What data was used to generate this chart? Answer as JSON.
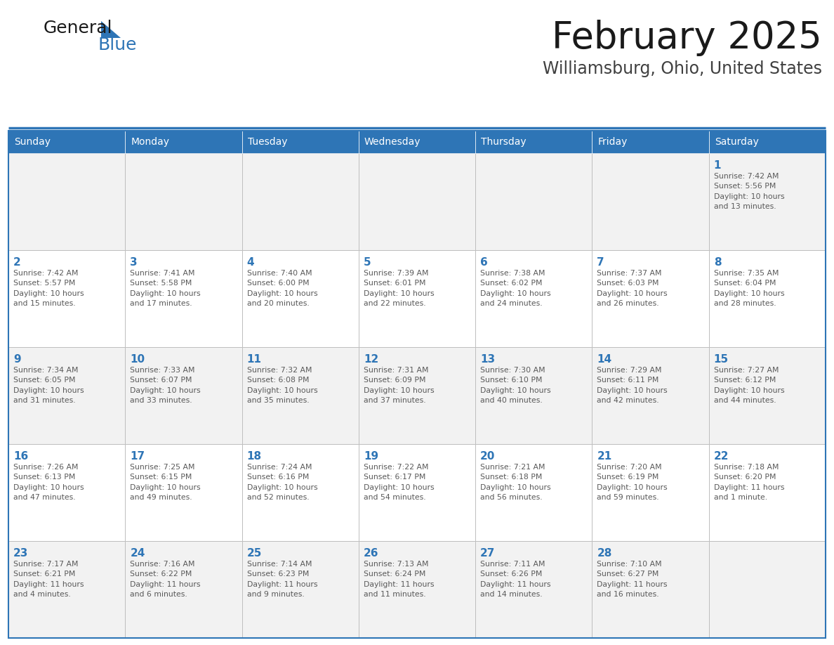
{
  "title": "February 2025",
  "subtitle": "Williamsburg, Ohio, United States",
  "header_color": "#2e75b6",
  "header_text_color": "#ffffff",
  "bg_color": "#ffffff",
  "cell_bg_odd": "#f2f2f2",
  "cell_bg_even": "#ffffff",
  "day_number_color": "#2e75b6",
  "text_color": "#595959",
  "border_color": "#2e75b6",
  "cell_border_color": "#bfbfbf",
  "logo_black": "#1a1a1a",
  "logo_blue": "#2e75b6",
  "days_of_week": [
    "Sunday",
    "Monday",
    "Tuesday",
    "Wednesday",
    "Thursday",
    "Friday",
    "Saturday"
  ],
  "weeks": [
    [
      {
        "day": "",
        "info": ""
      },
      {
        "day": "",
        "info": ""
      },
      {
        "day": "",
        "info": ""
      },
      {
        "day": "",
        "info": ""
      },
      {
        "day": "",
        "info": ""
      },
      {
        "day": "",
        "info": ""
      },
      {
        "day": "1",
        "info": "Sunrise: 7:42 AM\nSunset: 5:56 PM\nDaylight: 10 hours\nand 13 minutes."
      }
    ],
    [
      {
        "day": "2",
        "info": "Sunrise: 7:42 AM\nSunset: 5:57 PM\nDaylight: 10 hours\nand 15 minutes."
      },
      {
        "day": "3",
        "info": "Sunrise: 7:41 AM\nSunset: 5:58 PM\nDaylight: 10 hours\nand 17 minutes."
      },
      {
        "day": "4",
        "info": "Sunrise: 7:40 AM\nSunset: 6:00 PM\nDaylight: 10 hours\nand 20 minutes."
      },
      {
        "day": "5",
        "info": "Sunrise: 7:39 AM\nSunset: 6:01 PM\nDaylight: 10 hours\nand 22 minutes."
      },
      {
        "day": "6",
        "info": "Sunrise: 7:38 AM\nSunset: 6:02 PM\nDaylight: 10 hours\nand 24 minutes."
      },
      {
        "day": "7",
        "info": "Sunrise: 7:37 AM\nSunset: 6:03 PM\nDaylight: 10 hours\nand 26 minutes."
      },
      {
        "day": "8",
        "info": "Sunrise: 7:35 AM\nSunset: 6:04 PM\nDaylight: 10 hours\nand 28 minutes."
      }
    ],
    [
      {
        "day": "9",
        "info": "Sunrise: 7:34 AM\nSunset: 6:05 PM\nDaylight: 10 hours\nand 31 minutes."
      },
      {
        "day": "10",
        "info": "Sunrise: 7:33 AM\nSunset: 6:07 PM\nDaylight: 10 hours\nand 33 minutes."
      },
      {
        "day": "11",
        "info": "Sunrise: 7:32 AM\nSunset: 6:08 PM\nDaylight: 10 hours\nand 35 minutes."
      },
      {
        "day": "12",
        "info": "Sunrise: 7:31 AM\nSunset: 6:09 PM\nDaylight: 10 hours\nand 37 minutes."
      },
      {
        "day": "13",
        "info": "Sunrise: 7:30 AM\nSunset: 6:10 PM\nDaylight: 10 hours\nand 40 minutes."
      },
      {
        "day": "14",
        "info": "Sunrise: 7:29 AM\nSunset: 6:11 PM\nDaylight: 10 hours\nand 42 minutes."
      },
      {
        "day": "15",
        "info": "Sunrise: 7:27 AM\nSunset: 6:12 PM\nDaylight: 10 hours\nand 44 minutes."
      }
    ],
    [
      {
        "day": "16",
        "info": "Sunrise: 7:26 AM\nSunset: 6:13 PM\nDaylight: 10 hours\nand 47 minutes."
      },
      {
        "day": "17",
        "info": "Sunrise: 7:25 AM\nSunset: 6:15 PM\nDaylight: 10 hours\nand 49 minutes."
      },
      {
        "day": "18",
        "info": "Sunrise: 7:24 AM\nSunset: 6:16 PM\nDaylight: 10 hours\nand 52 minutes."
      },
      {
        "day": "19",
        "info": "Sunrise: 7:22 AM\nSunset: 6:17 PM\nDaylight: 10 hours\nand 54 minutes."
      },
      {
        "day": "20",
        "info": "Sunrise: 7:21 AM\nSunset: 6:18 PM\nDaylight: 10 hours\nand 56 minutes."
      },
      {
        "day": "21",
        "info": "Sunrise: 7:20 AM\nSunset: 6:19 PM\nDaylight: 10 hours\nand 59 minutes."
      },
      {
        "day": "22",
        "info": "Sunrise: 7:18 AM\nSunset: 6:20 PM\nDaylight: 11 hours\nand 1 minute."
      }
    ],
    [
      {
        "day": "23",
        "info": "Sunrise: 7:17 AM\nSunset: 6:21 PM\nDaylight: 11 hours\nand 4 minutes."
      },
      {
        "day": "24",
        "info": "Sunrise: 7:16 AM\nSunset: 6:22 PM\nDaylight: 11 hours\nand 6 minutes."
      },
      {
        "day": "25",
        "info": "Sunrise: 7:14 AM\nSunset: 6:23 PM\nDaylight: 11 hours\nand 9 minutes."
      },
      {
        "day": "26",
        "info": "Sunrise: 7:13 AM\nSunset: 6:24 PM\nDaylight: 11 hours\nand 11 minutes."
      },
      {
        "day": "27",
        "info": "Sunrise: 7:11 AM\nSunset: 6:26 PM\nDaylight: 11 hours\nand 14 minutes."
      },
      {
        "day": "28",
        "info": "Sunrise: 7:10 AM\nSunset: 6:27 PM\nDaylight: 11 hours\nand 16 minutes."
      },
      {
        "day": "",
        "info": ""
      }
    ]
  ]
}
